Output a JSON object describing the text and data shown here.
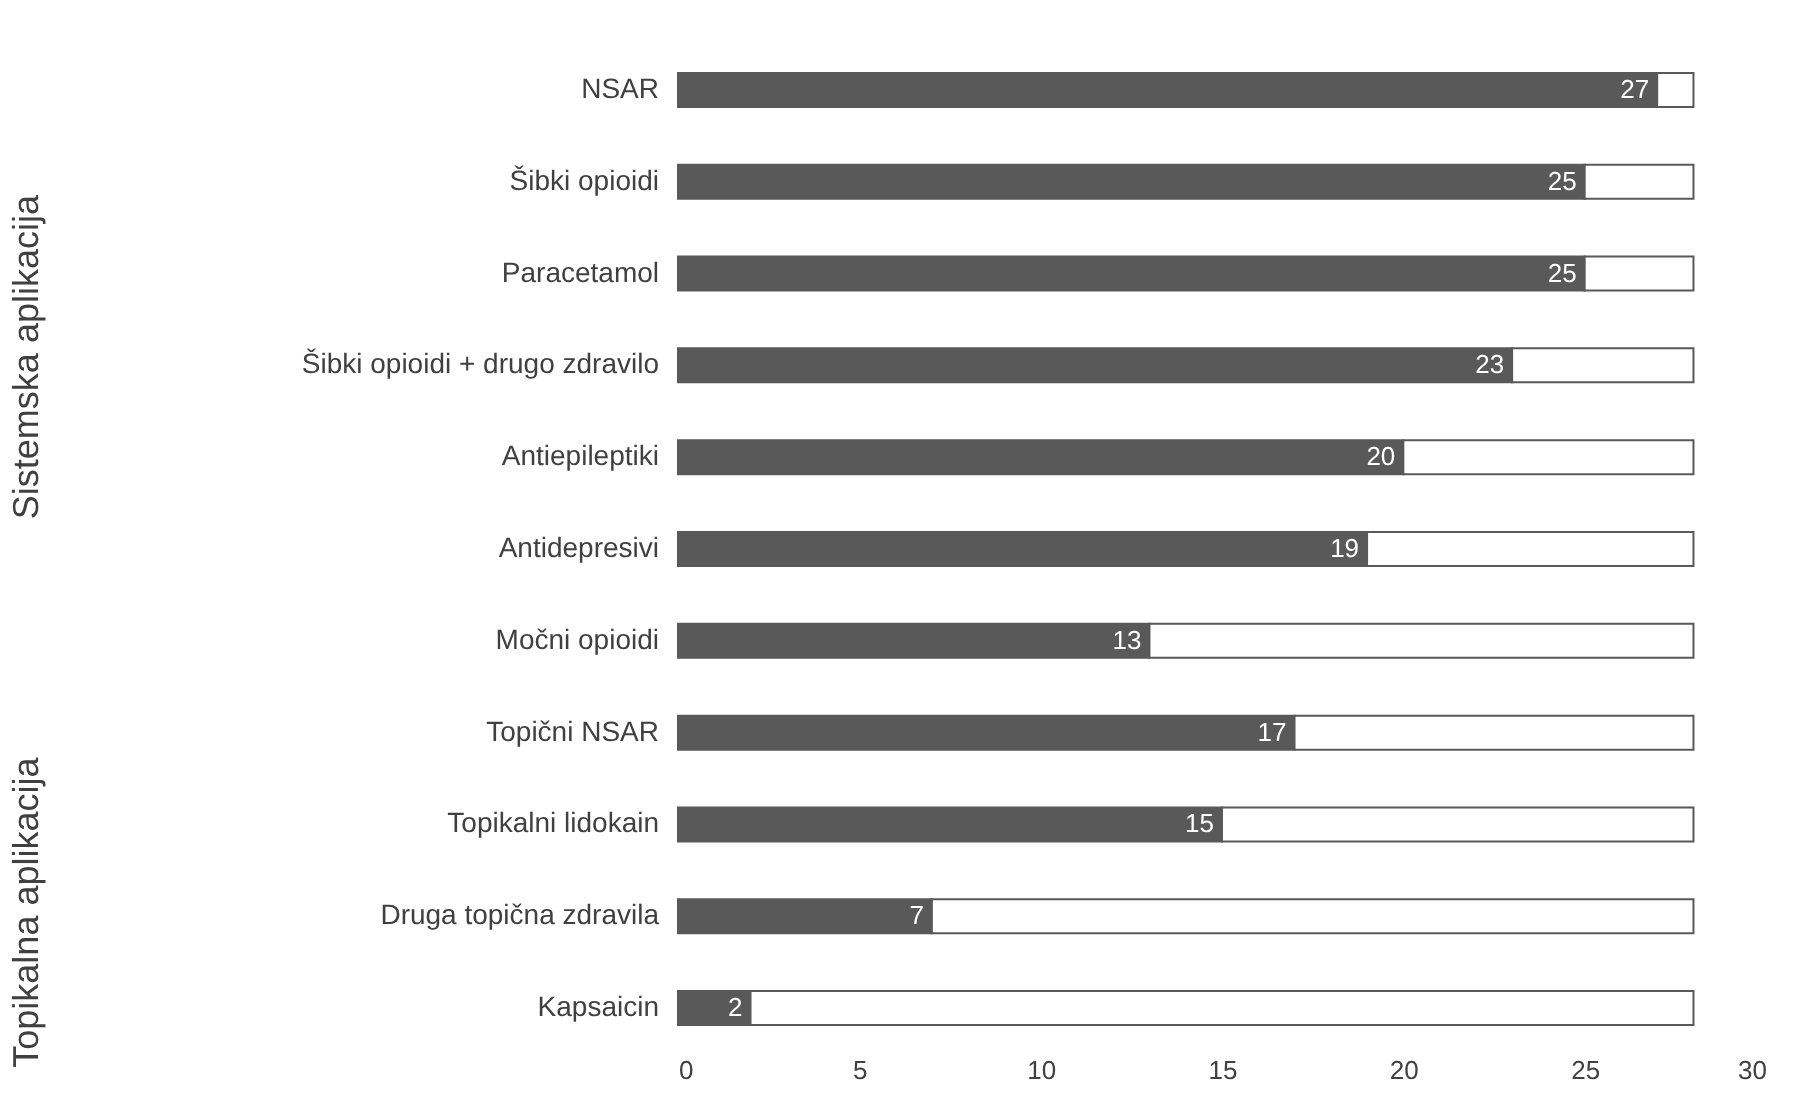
{
  "chart_data": {
    "type": "bar",
    "orientation": "horizontal",
    "stacked": true,
    "categories": [
      "NSAR",
      "Šibki opioidi",
      "Paracetamol",
      "Šibki opioidi + drugo zdravilo",
      "Antiepileptiki",
      "Antidepresivi",
      "Močni opioidi",
      "Topični NSAR",
      "Topikalni lidokain",
      "Druga topična zdravila",
      "Kapsaicin"
    ],
    "series": [
      {
        "color": "#595959",
        "values": [
          27,
          25,
          25,
          23,
          20,
          19,
          13,
          17,
          15,
          7,
          2
        ],
        "value_labels": [
          "27",
          "25",
          "25",
          "23",
          "20",
          "19",
          "13",
          "17",
          "15",
          "7",
          "2"
        ]
      },
      {
        "color": "#ffffff",
        "values": [
          1,
          3,
          3,
          5,
          8,
          9,
          15,
          11,
          13,
          21,
          26
        ]
      }
    ],
    "xlim": [
      0,
      30
    ],
    "xticks": [
      0,
      5,
      10,
      15,
      20,
      25,
      30
    ],
    "grid": false,
    "legend": false,
    "annotations": [
      "Sistemska aplikacija",
      "Topikalna aplikacija"
    ]
  }
}
